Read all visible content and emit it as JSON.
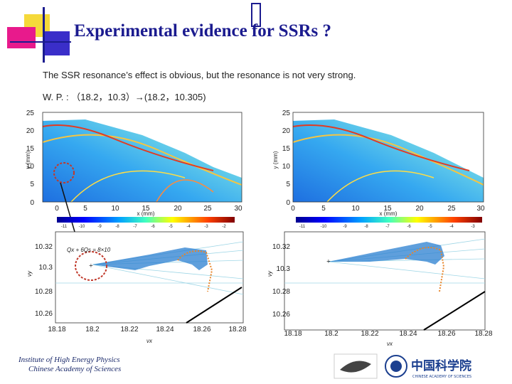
{
  "slide": {
    "title": "Experimental evidence for SSRs ?",
    "line1": "The SSR resonance’s effect is obvious, but the resonance is not very strong.",
    "line2": "W. P. : （18.2，10.3）→(18.2，10.305)"
  },
  "footer": {
    "institute_line1": "Institute of High Energy Physics",
    "institute_line2": "Chinese Academy of Sciences",
    "cas_logo_text": "中国科学院",
    "cas_logo_subtext": "CHINESE ACADEMY OF SCIENCES"
  },
  "heatmaps": [
    {
      "xlabel": "x (mm)",
      "ylabel": "y (mm)",
      "xticks": [
        "0",
        "5",
        "10",
        "15",
        "20",
        "25",
        "30"
      ],
      "yticks": [
        "0",
        "5",
        "10",
        "15",
        "20",
        "25"
      ],
      "colorbar_ticks": [
        "-11",
        "-10",
        "-9",
        "-8",
        "-7",
        "-6",
        "-5",
        "-4",
        "-3",
        "-2"
      ]
    },
    {
      "xlabel": "x (mm)",
      "ylabel": "y (mm)",
      "xticks": [
        "0",
        "5",
        "10",
        "15",
        "20",
        "25",
        "30"
      ],
      "yticks": [
        "0",
        "5",
        "10",
        "15",
        "20",
        "25"
      ],
      "colorbar_ticks": [
        "-11",
        "-10",
        "-9",
        "-8",
        "-7",
        "-6",
        "-5",
        "-4",
        "-3"
      ]
    }
  ],
  "tune_plots": [
    {
      "xlabel": "νx",
      "ylabel": "νy",
      "xticks": [
        "18.18",
        "18.2",
        "18.22",
        "18.24",
        "18.26",
        "18.28"
      ],
      "yticks": [
        "10.32",
        "10.3",
        "10.28",
        "10.26"
      ],
      "annotation": "Qx + 6Qs = 8×10"
    },
    {
      "xlabel": "νx",
      "ylabel": "νy",
      "xticks": [
        "18.18",
        "18.2",
        "18.22",
        "18.24",
        "18.26",
        "18.28"
      ],
      "yticks": [
        "10.32",
        "10.3",
        "10.28",
        "10.26"
      ]
    }
  ],
  "colors": {
    "title": "#1b1b8f",
    "highlight_circle": "#c0392b"
  }
}
